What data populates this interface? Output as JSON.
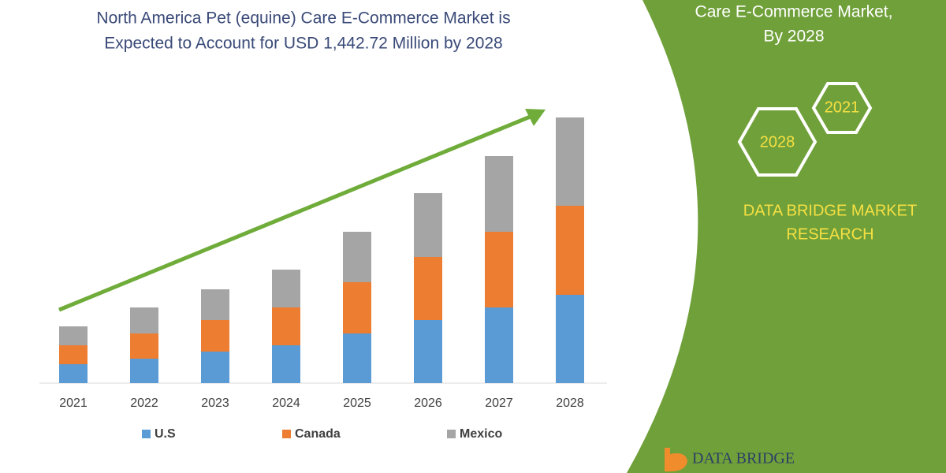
{
  "title_lines": [
    "North America Pet (equine) Care E-Commerce Market is",
    "Expected to Account for USD 1,442.72 Million by 2028"
  ],
  "panel": {
    "heading_lines": [
      "Care E-Commerce Market,",
      "By 2028"
    ],
    "hex_labels": [
      "2021",
      "2028"
    ],
    "brand_lines": [
      "DATA BRIDGE MARKET",
      "RESEARCH"
    ],
    "logo_text": "DATA BRIDGE"
  },
  "chart_data": {
    "type": "stacked-bar",
    "categories": [
      "2021",
      "2022",
      "2023",
      "2024",
      "2025",
      "2026",
      "2027",
      "2028"
    ],
    "series": [
      {
        "name": "U.S",
        "color": "#5b9bd5",
        "values": [
          24,
          31,
          40,
          48,
          63,
          80,
          96,
          112
        ]
      },
      {
        "name": "Canada",
        "color": "#ed7d31",
        "values": [
          24,
          32,
          40,
          48,
          65,
          80,
          96,
          113
        ]
      },
      {
        "name": "Mexico",
        "color": "#a5a5a5",
        "values": [
          24,
          33,
          39,
          48,
          64,
          81,
          96,
          112
        ]
      }
    ]
  }
}
